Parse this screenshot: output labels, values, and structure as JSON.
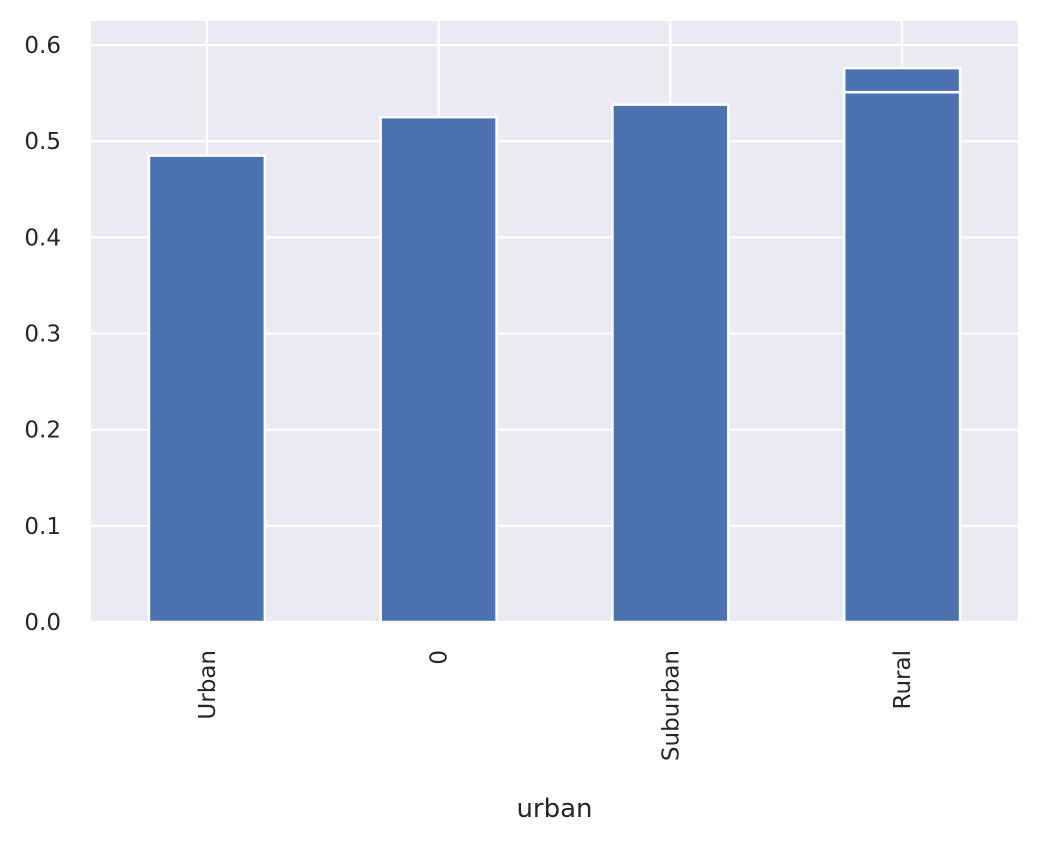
{
  "chart_data": {
    "type": "bar",
    "categories": [
      "Urban",
      "0",
      "Suburban",
      "Rural"
    ],
    "series": [
      {
        "values": [
          0.485,
          0.525,
          0.538,
          0.551
        ]
      },
      {
        "values": [
          0,
          0,
          0,
          0.025
        ]
      }
    ],
    "stacked": true,
    "xlabel": "urban",
    "ylabel": "",
    "ylim": [
      0,
      0.625
    ],
    "yticks": [
      0.0,
      0.1,
      0.2,
      0.3,
      0.4,
      0.5,
      0.6
    ],
    "ytick_labels": [
      "0.0",
      "0.1",
      "0.2",
      "0.3",
      "0.4",
      "0.5",
      "0.6"
    ],
    "grid": true,
    "colors": {
      "background": "#eaeaf2",
      "bar": "#4c72b0",
      "grid": "#ffffff",
      "text": "#262626"
    }
  }
}
